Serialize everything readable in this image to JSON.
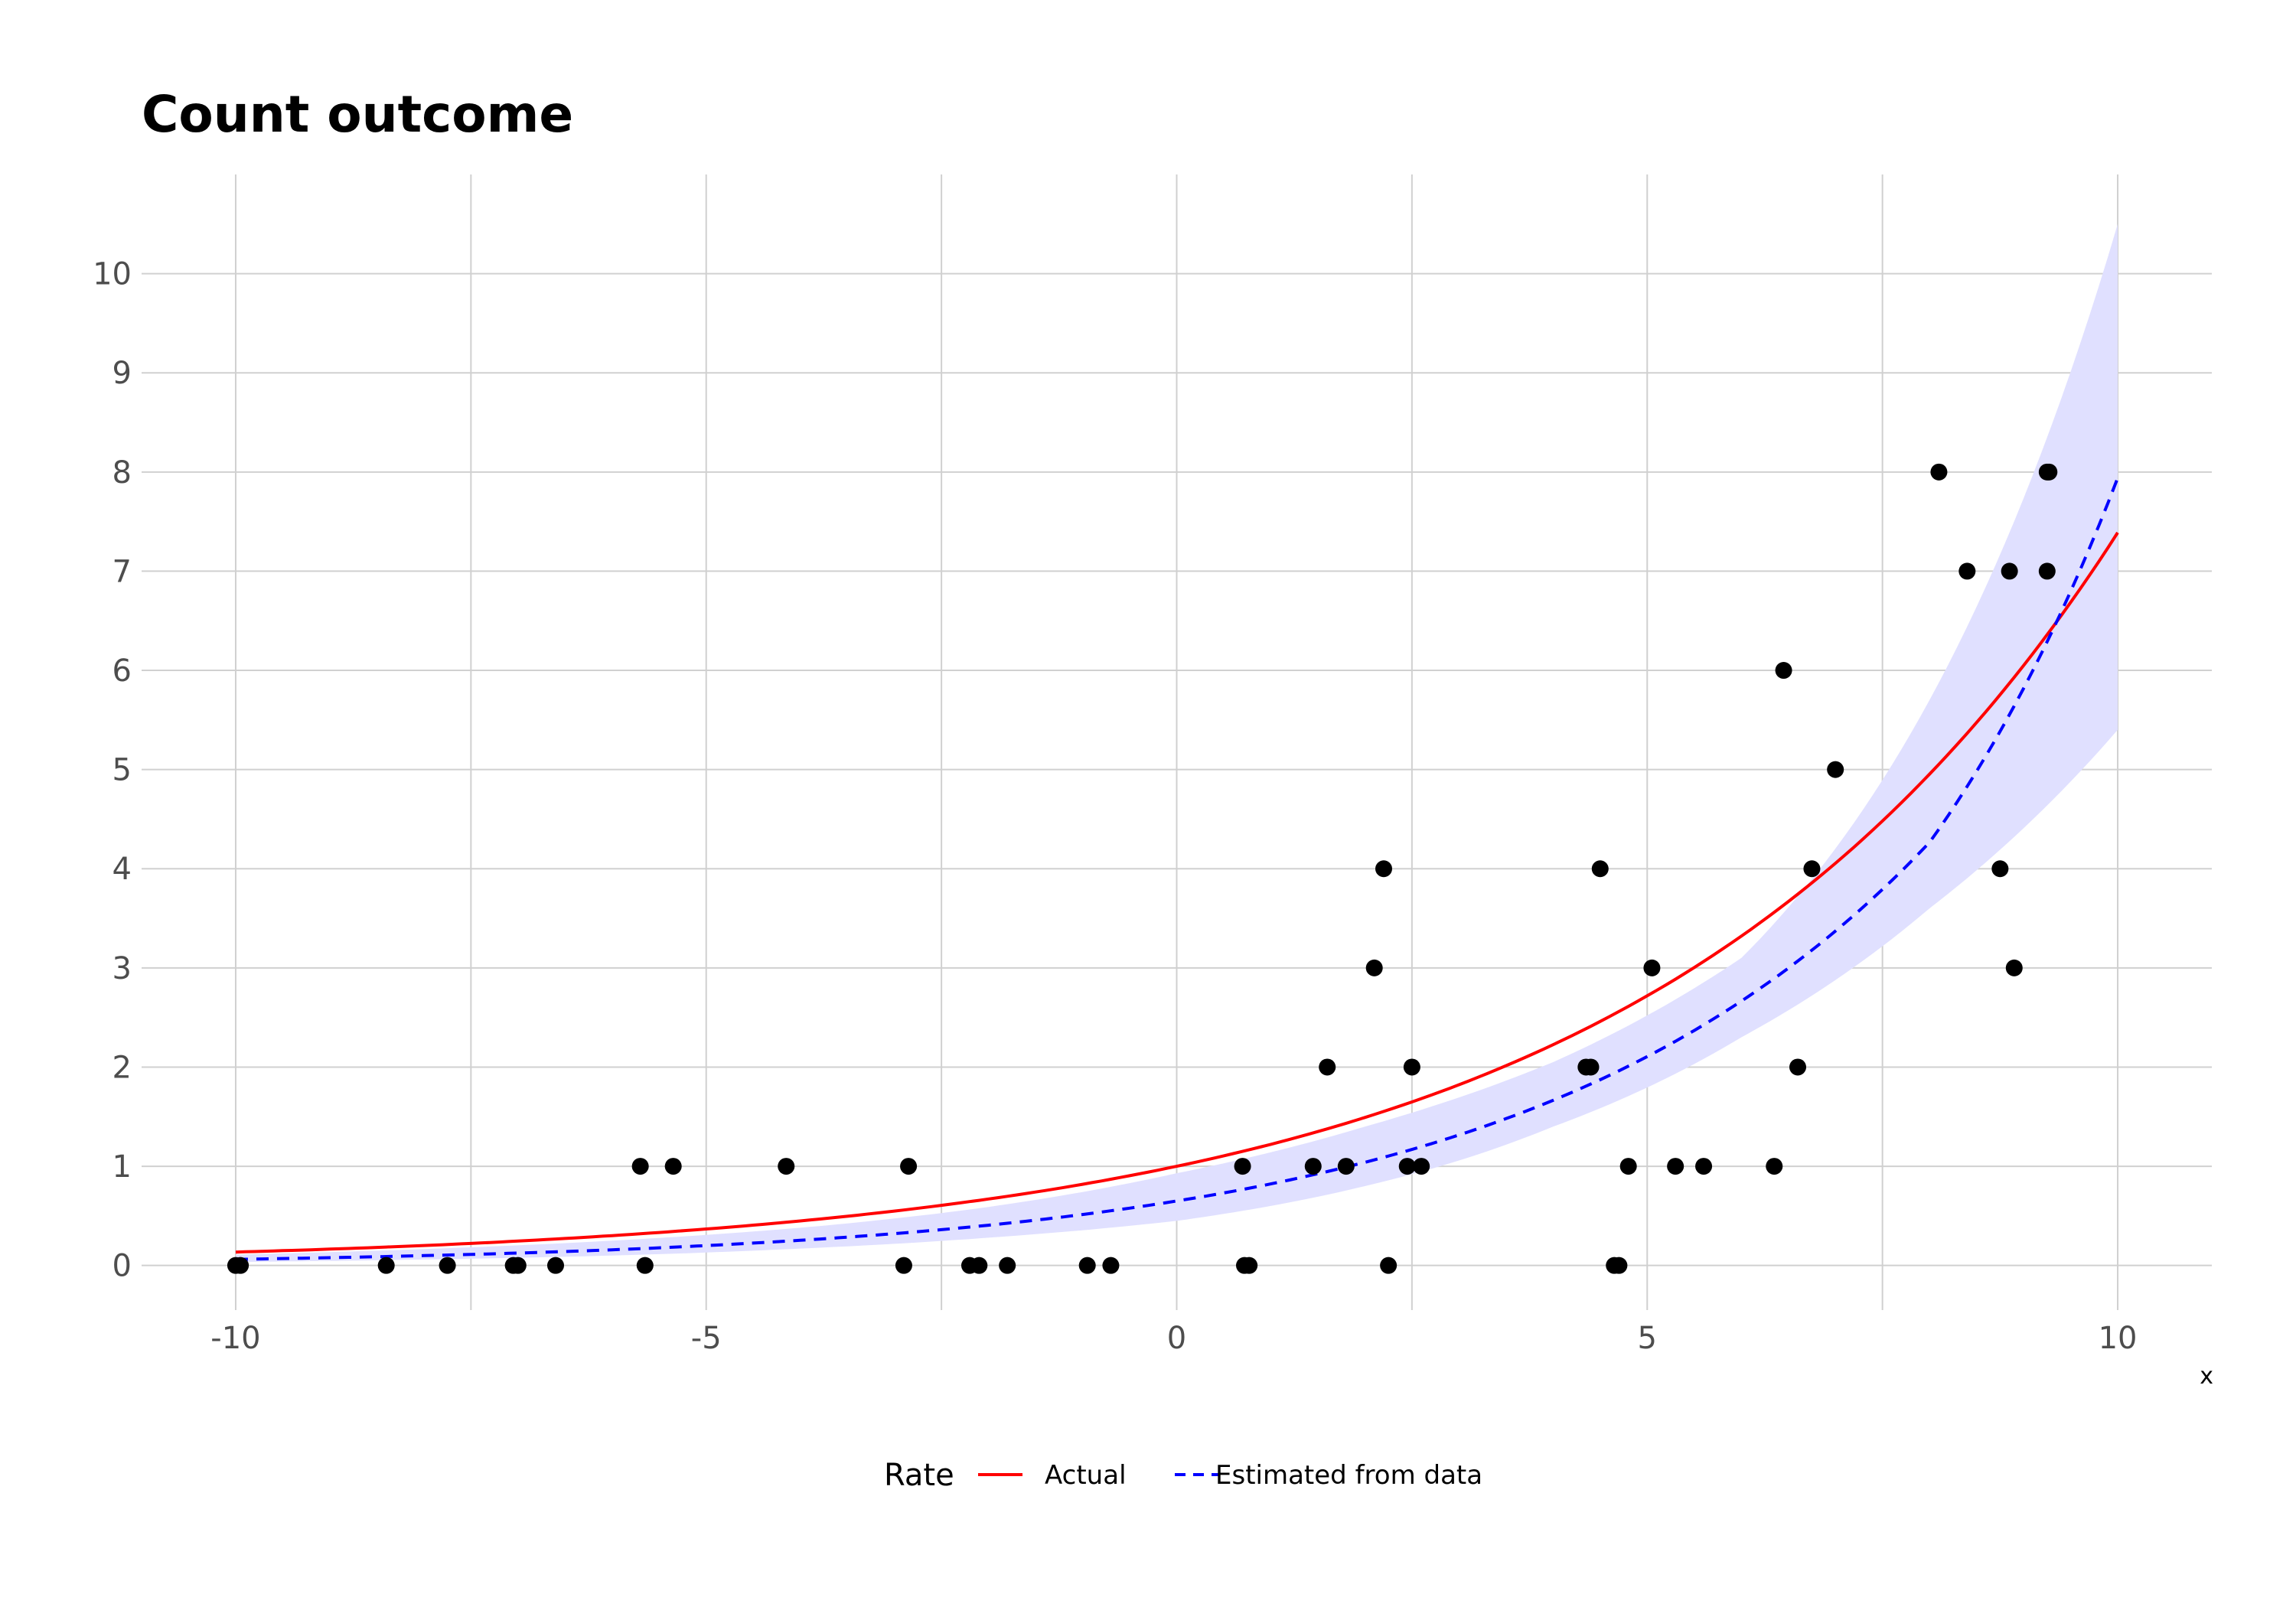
{
  "chart_data": {
    "type": "scatter",
    "title": "Count outcome",
    "xlabel": "x",
    "ylabel": "",
    "xlim": [
      -11,
      11
    ],
    "ylim": [
      -0.45,
      11
    ],
    "x_ticks": [
      -10,
      -5,
      0,
      5,
      10
    ],
    "x_tick_labels": [
      "-10",
      "-5",
      "0",
      "5",
      "10"
    ],
    "y_ticks": [
      0,
      1,
      2,
      3,
      4,
      5,
      6,
      7,
      8,
      9,
      10
    ],
    "y_tick_labels": [
      "0",
      "1",
      "2",
      "3",
      "4",
      "5",
      "6",
      "7",
      "8",
      "9",
      "10"
    ],
    "grid": true,
    "legend": {
      "title": "Rate",
      "position": "bottom",
      "entries": [
        {
          "label": "Actual",
          "color": "#ff0000",
          "style": "solid"
        },
        {
          "label": "Estimated from data",
          "color": "#0000ff",
          "style": "dashed"
        }
      ]
    },
    "colors": {
      "actual": "#ff0000",
      "estimated": "#0000ff",
      "band": "#e0e0ff",
      "points": "#000000"
    },
    "points": [
      {
        "x": -10.0,
        "y": 0
      },
      {
        "x": -9.95,
        "y": 0
      },
      {
        "x": -8.4,
        "y": 0
      },
      {
        "x": -7.75,
        "y": 0
      },
      {
        "x": -7.05,
        "y": 0
      },
      {
        "x": -7.0,
        "y": 0
      },
      {
        "x": -6.6,
        "y": 0
      },
      {
        "x": -5.7,
        "y": 1
      },
      {
        "x": -5.65,
        "y": 0
      },
      {
        "x": -5.35,
        "y": 1
      },
      {
        "x": -4.15,
        "y": 1
      },
      {
        "x": -2.9,
        "y": 0
      },
      {
        "x": -2.85,
        "y": 1
      },
      {
        "x": -2.2,
        "y": 0
      },
      {
        "x": -2.1,
        "y": 0
      },
      {
        "x": -1.8,
        "y": 0
      },
      {
        "x": -0.95,
        "y": 0
      },
      {
        "x": -0.7,
        "y": 0
      },
      {
        "x": 0.7,
        "y": 1
      },
      {
        "x": 0.72,
        "y": 0
      },
      {
        "x": 0.77,
        "y": 0
      },
      {
        "x": 1.45,
        "y": 1
      },
      {
        "x": 1.6,
        "y": 2
      },
      {
        "x": 1.8,
        "y": 1
      },
      {
        "x": 2.1,
        "y": 3
      },
      {
        "x": 2.2,
        "y": 4
      },
      {
        "x": 2.25,
        "y": 0
      },
      {
        "x": 2.45,
        "y": 1
      },
      {
        "x": 2.5,
        "y": 2
      },
      {
        "x": 2.6,
        "y": 1
      },
      {
        "x": 4.35,
        "y": 2
      },
      {
        "x": 4.4,
        "y": 2
      },
      {
        "x": 4.5,
        "y": 4
      },
      {
        "x": 4.65,
        "y": 0
      },
      {
        "x": 4.7,
        "y": 0
      },
      {
        "x": 4.8,
        "y": 1
      },
      {
        "x": 5.05,
        "y": 3
      },
      {
        "x": 5.3,
        "y": 1
      },
      {
        "x": 5.6,
        "y": 1
      },
      {
        "x": 6.35,
        "y": 1
      },
      {
        "x": 6.45,
        "y": 6
      },
      {
        "x": 6.6,
        "y": 2
      },
      {
        "x": 6.75,
        "y": 4
      },
      {
        "x": 7.0,
        "y": 5
      },
      {
        "x": 8.1,
        "y": 8
      },
      {
        "x": 8.4,
        "y": 7
      },
      {
        "x": 8.75,
        "y": 4
      },
      {
        "x": 8.85,
        "y": 7
      },
      {
        "x": 8.9,
        "y": 3
      },
      {
        "x": 9.25,
        "y": 8
      },
      {
        "x": 9.25,
        "y": 7
      },
      {
        "x": 9.27,
        "y": 8
      }
    ],
    "series": [
      {
        "name": "Actual",
        "x": [
          -10,
          -8,
          -6,
          -4,
          -2,
          0,
          2,
          4,
          6,
          8,
          10
        ],
        "values": [
          0.135,
          0.201,
          0.301,
          0.449,
          0.67,
          1.0,
          1.492,
          2.226,
          3.32,
          4.953,
          7.389
        ]
      },
      {
        "name": "Estimated from data",
        "x": [
          -10,
          -8,
          -6,
          -4,
          -2,
          0,
          2,
          4,
          6,
          8,
          10
        ],
        "values": [
          0.062,
          0.099,
          0.158,
          0.254,
          0.406,
          0.65,
          1.04,
          1.665,
          2.665,
          4.265,
          7.94
        ]
      }
    ],
    "ribbon": {
      "x": [
        -10,
        -8,
        -6,
        -4,
        -2,
        0,
        2,
        4,
        6,
        8,
        10
      ],
      "lower": [
        0.035,
        0.06,
        0.1,
        0.17,
        0.28,
        0.45,
        0.8,
        1.4,
        2.3,
        3.6,
        5.4
      ],
      "upper": [
        0.11,
        0.165,
        0.25,
        0.38,
        0.59,
        0.93,
        1.4,
        2.05,
        3.1,
        5.7,
        10.5
      ]
    }
  }
}
